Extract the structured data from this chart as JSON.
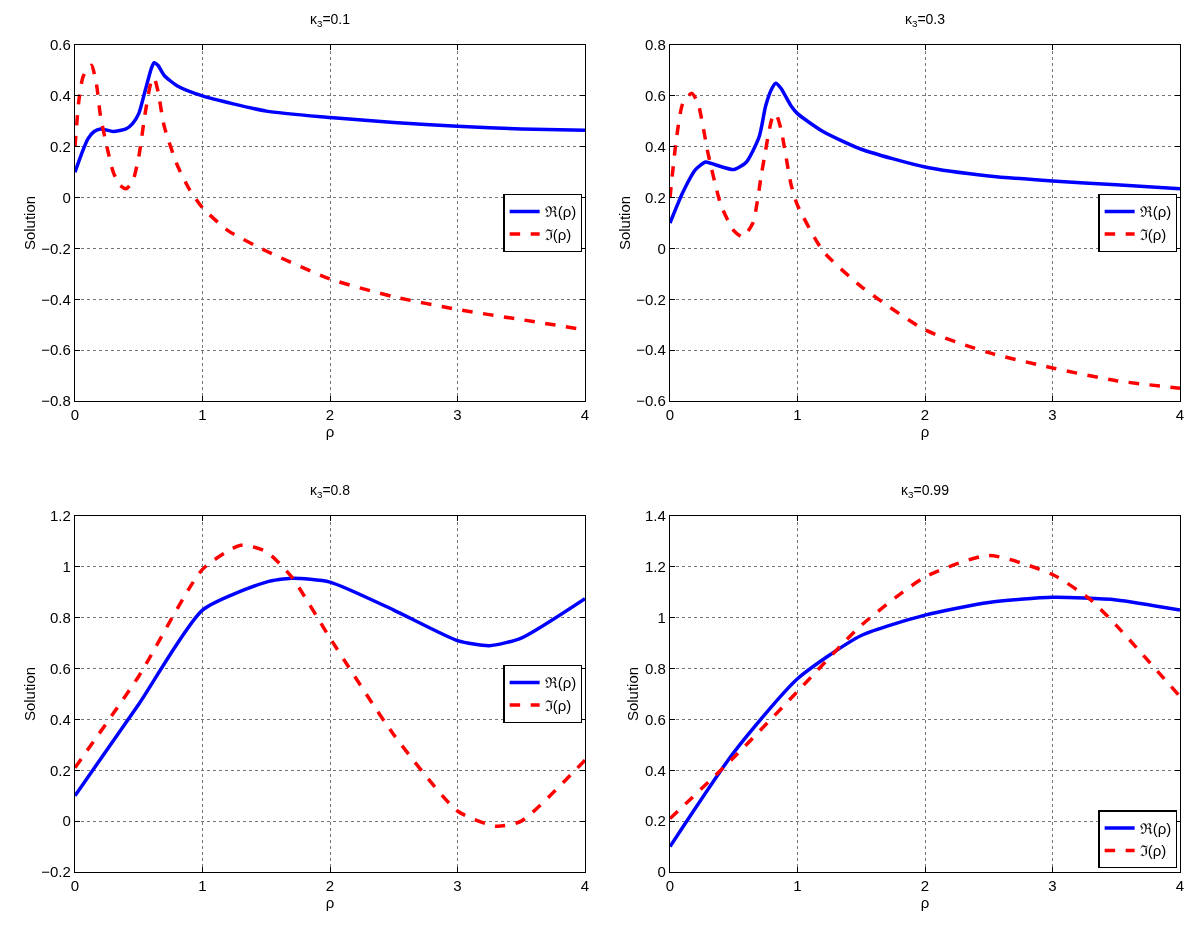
{
  "chart_data": [
    {
      "type": "line",
      "title": "κ$_{3}$=0.1",
      "xlabel": "ρ",
      "ylabel": "Solution",
      "xlim": [
        0,
        4
      ],
      "xticks": [
        0,
        1,
        2,
        3,
        4
      ],
      "ylim": [
        -0.8,
        0.6
      ],
      "yticks": [
        {
          "value": -0.8,
          "label": "−0.8"
        },
        {
          "value": -0.6,
          "label": "−0.6"
        },
        {
          "value": -0.4,
          "label": "−0.4"
        },
        {
          "value": -0.2,
          "label": "−0.2"
        },
        0,
        0.2,
        0.4,
        0.6
      ],
      "grid": true,
      "legend": "right",
      "series": [
        {
          "name": "ℜ(ρ)",
          "color": "#0000ff",
          "line_style": "solid",
          "x": [
            0,
            0.05,
            0.1,
            0.15,
            0.2,
            0.3,
            0.4,
            0.45,
            0.5,
            0.55,
            0.6,
            0.62,
            0.65,
            0.7,
            0.8,
            1,
            1.5,
            2,
            2.5,
            3,
            3.5,
            4
          ],
          "values": [
            0.1,
            0.17,
            0.23,
            0.26,
            0.27,
            0.26,
            0.27,
            0.29,
            0.33,
            0.42,
            0.51,
            0.53,
            0.52,
            0.48,
            0.44,
            0.4,
            0.34,
            0.315,
            0.295,
            0.28,
            0.27,
            0.265
          ]
        },
        {
          "name": "ℑ(ρ)",
          "color": "#ff0000",
          "line_style": "dashed",
          "x": [
            0,
            0.03,
            0.06,
            0.1,
            0.13,
            0.17,
            0.2,
            0.25,
            0.3,
            0.35,
            0.4,
            0.45,
            0.5,
            0.55,
            0.6,
            0.62,
            0.65,
            0.7,
            0.8,
            0.9,
            1,
            1.2,
            1.5,
            2,
            2.5,
            3,
            3.5,
            4
          ],
          "values": [
            0.2,
            0.38,
            0.47,
            0.51,
            0.52,
            0.44,
            0.32,
            0.2,
            0.1,
            0.05,
            0.035,
            0.06,
            0.16,
            0.33,
            0.46,
            0.47,
            0.42,
            0.28,
            0.13,
            0.03,
            -0.04,
            -0.13,
            -0.21,
            -0.32,
            -0.39,
            -0.44,
            -0.48,
            -0.52
          ]
        }
      ]
    },
    {
      "type": "line",
      "title": "κ$_{3}$=0.3",
      "xlabel": "ρ",
      "ylabel": "Solution",
      "xlim": [
        0,
        4
      ],
      "xticks": [
        0,
        1,
        2,
        3,
        4
      ],
      "ylim": [
        -0.6,
        0.8
      ],
      "yticks": [
        {
          "value": -0.6,
          "label": "−0.6"
        },
        {
          "value": -0.4,
          "label": "−0.4"
        },
        {
          "value": -0.2,
          "label": "−0.2"
        },
        0,
        0.2,
        0.4,
        0.6,
        0.8
      ],
      "grid": true,
      "legend": "right",
      "series": [
        {
          "name": "ℜ(ρ)",
          "color": "#0000ff",
          "line_style": "solid",
          "x": [
            0,
            0.1,
            0.2,
            0.28,
            0.35,
            0.5,
            0.6,
            0.7,
            0.75,
            0.8,
            0.83,
            0.87,
            0.95,
            1,
            1.2,
            1.5,
            2,
            2.5,
            3,
            3.5,
            4
          ],
          "values": [
            0.1,
            0.22,
            0.31,
            0.34,
            0.33,
            0.31,
            0.34,
            0.44,
            0.56,
            0.63,
            0.65,
            0.63,
            0.56,
            0.53,
            0.46,
            0.39,
            0.32,
            0.285,
            0.265,
            0.25,
            0.235
          ]
        },
        {
          "name": "ℑ(ρ)",
          "color": "#ff0000",
          "line_style": "dashed",
          "x": [
            0,
            0.05,
            0.1,
            0.17,
            0.22,
            0.3,
            0.4,
            0.5,
            0.57,
            0.65,
            0.72,
            0.8,
            0.83,
            0.87,
            0.95,
            1,
            1.2,
            1.5,
            2,
            2.5,
            3,
            3.5,
            4
          ],
          "values": [
            0.2,
            0.43,
            0.57,
            0.61,
            0.57,
            0.37,
            0.17,
            0.07,
            0.045,
            0.1,
            0.3,
            0.51,
            0.53,
            0.47,
            0.25,
            0.17,
            -0.01,
            -0.15,
            -0.32,
            -0.41,
            -0.47,
            -0.52,
            -0.55
          ]
        }
      ]
    },
    {
      "type": "line",
      "title": "κ$_{3}$=0.8",
      "xlabel": "ρ",
      "ylabel": "Solution",
      "xlim": [
        0,
        4
      ],
      "xticks": [
        0,
        1,
        2,
        3,
        4
      ],
      "ylim": [
        -0.2,
        1.2
      ],
      "yticks": [
        {
          "value": -0.2,
          "label": "−0.2"
        },
        0,
        0.2,
        0.4,
        0.6,
        0.8,
        1,
        1.2
      ],
      "grid": true,
      "legend": "right",
      "series": [
        {
          "name": "ℜ(ρ)",
          "color": "#0000ff",
          "line_style": "solid",
          "x": [
            0,
            0.5,
            1,
            1.5,
            1.7,
            2,
            2.5,
            3,
            3.25,
            3.5,
            4
          ],
          "values": [
            0.1,
            0.46,
            0.83,
            0.94,
            0.955,
            0.94,
            0.83,
            0.71,
            0.69,
            0.72,
            0.875
          ]
        },
        {
          "name": "ℑ(ρ)",
          "color": "#ff0000",
          "line_style": "dashed",
          "x": [
            0,
            0.5,
            1,
            1.3,
            1.5,
            1.7,
            2,
            2.5,
            3,
            3.3,
            3.5,
            4
          ],
          "values": [
            0.21,
            0.57,
            0.99,
            1.085,
            1.06,
            0.96,
            0.72,
            0.34,
            0.04,
            -0.02,
            0,
            0.24
          ]
        }
      ]
    },
    {
      "type": "line",
      "title": "κ$_{3}$=0.99",
      "xlabel": "ρ",
      "ylabel": "Solution",
      "xlim": [
        0,
        4
      ],
      "xticks": [
        0,
        1,
        2,
        3,
        4
      ],
      "ylim": [
        0,
        1.4
      ],
      "yticks": [
        0,
        0.2,
        0.4,
        0.6,
        0.8,
        1,
        1.2,
        1.4
      ],
      "grid": true,
      "legend": "bottom right",
      "series": [
        {
          "name": "ℜ(ρ)",
          "color": "#0000ff",
          "line_style": "solid",
          "x": [
            0,
            0.5,
            1,
            1.5,
            2,
            2.5,
            3,
            3.5,
            4
          ],
          "values": [
            0.1,
            0.47,
            0.76,
            0.93,
            1.01,
            1.06,
            1.08,
            1.07,
            1.03
          ]
        },
        {
          "name": "ℑ(ρ)",
          "color": "#ff0000",
          "line_style": "dashed",
          "x": [
            0,
            0.5,
            1,
            1.5,
            2,
            2.5,
            3,
            3.3,
            3.5,
            4
          ],
          "values": [
            0.21,
            0.45,
            0.71,
            0.97,
            1.16,
            1.245,
            1.17,
            1.07,
            0.97,
            0.69
          ]
        }
      ]
    }
  ]
}
